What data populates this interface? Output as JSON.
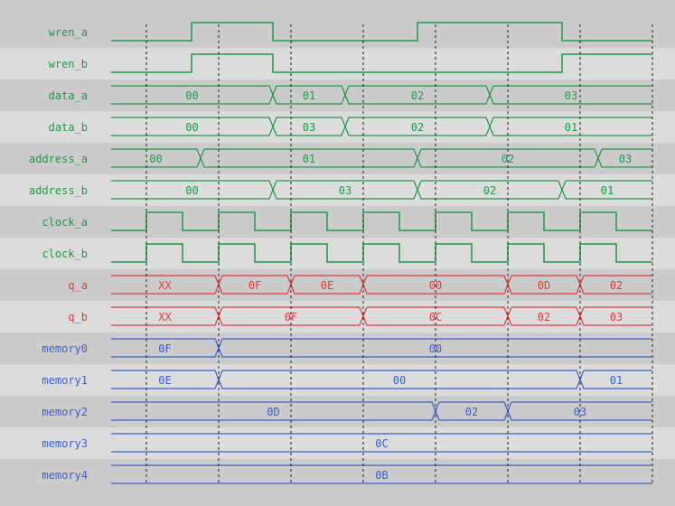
{
  "colors": {
    "control": "#1f9a45",
    "output": "#e03c3c",
    "memory": "#3a5fd0",
    "row_dark": "#cbcbcb",
    "row_light": "#dcdcdc",
    "grid": "#222222"
  },
  "time_range": [
    0,
    15
  ],
  "grid_times": [
    1,
    3,
    5,
    7,
    9,
    11,
    13,
    15
  ],
  "signals": [
    {
      "name": "wren_a",
      "kind": "bit",
      "group": "control",
      "initial": 0,
      "toggles": [
        2.25,
        4.5,
        8.5,
        12.5
      ]
    },
    {
      "name": "wren_b",
      "kind": "bit",
      "group": "control",
      "initial": 0,
      "toggles": [
        2.25,
        4.5,
        12.5
      ]
    },
    {
      "name": "data_a",
      "kind": "bus",
      "group": "control",
      "segments": [
        {
          "value": "00",
          "end": 4.5
        },
        {
          "value": "01",
          "end": 6.5
        },
        {
          "value": "02",
          "end": 10.5
        },
        {
          "value": "03",
          "end": 15
        }
      ]
    },
    {
      "name": "data_b",
      "kind": "bus",
      "group": "control",
      "segments": [
        {
          "value": "00",
          "end": 4.5
        },
        {
          "value": "03",
          "end": 6.5
        },
        {
          "value": "02",
          "end": 10.5
        },
        {
          "value": "01",
          "end": 15
        }
      ]
    },
    {
      "name": "address_a",
      "kind": "bus",
      "group": "control",
      "segments": [
        {
          "value": "00",
          "end": 2.5
        },
        {
          "value": "01",
          "end": 8.5
        },
        {
          "value": "02",
          "end": 13.5
        },
        {
          "value": "03",
          "end": 15
        }
      ]
    },
    {
      "name": "address_b",
      "kind": "bus",
      "group": "control",
      "segments": [
        {
          "value": "00",
          "end": 4.5
        },
        {
          "value": "03",
          "end": 8.5
        },
        {
          "value": "02",
          "end": 12.5
        },
        {
          "value": "01",
          "end": 15
        }
      ]
    },
    {
      "name": "clock_a",
      "kind": "bit",
      "group": "control",
      "initial": 0,
      "toggles": [
        1,
        2,
        3,
        4,
        5,
        6,
        7,
        8,
        9,
        10,
        11,
        12,
        13,
        14
      ]
    },
    {
      "name": "clock_b",
      "kind": "bit",
      "group": "control",
      "initial": 0,
      "toggles": [
        1,
        2,
        3,
        4,
        5,
        6,
        7,
        8,
        9,
        10,
        11,
        12,
        13,
        14
      ]
    },
    {
      "name": "q_a",
      "kind": "bus",
      "group": "output",
      "segments": [
        {
          "value": "XX",
          "end": 3
        },
        {
          "value": "0F",
          "end": 5
        },
        {
          "value": "0E",
          "end": 7
        },
        {
          "value": "00",
          "end": 11
        },
        {
          "value": "0D",
          "end": 13
        },
        {
          "value": "02",
          "end": 15
        }
      ]
    },
    {
      "name": "q_b",
      "kind": "bus",
      "group": "output",
      "segments": [
        {
          "value": "XX",
          "end": 3
        },
        {
          "value": "0F",
          "end": 7
        },
        {
          "value": "0C",
          "end": 11
        },
        {
          "value": "02",
          "end": 13
        },
        {
          "value": "03",
          "end": 15
        }
      ]
    },
    {
      "name": "memory0",
      "kind": "bus",
      "group": "memory",
      "segments": [
        {
          "value": "0F",
          "end": 3
        },
        {
          "value": "00",
          "end": 15
        }
      ]
    },
    {
      "name": "memory1",
      "kind": "bus",
      "group": "memory",
      "segments": [
        {
          "value": "0E",
          "end": 3
        },
        {
          "value": "00",
          "end": 13
        },
        {
          "value": "01",
          "end": 15
        }
      ]
    },
    {
      "name": "memory2",
      "kind": "bus",
      "group": "memory",
      "segments": [
        {
          "value": "0D",
          "end": 9
        },
        {
          "value": "02",
          "end": 11
        },
        {
          "value": "03",
          "end": 15
        }
      ]
    },
    {
      "name": "memory3",
      "kind": "bus",
      "group": "memory",
      "segments": [
        {
          "value": "0C",
          "end": 15
        }
      ]
    },
    {
      "name": "memory4",
      "kind": "bus",
      "group": "memory",
      "segments": [
        {
          "value": "0B",
          "end": 15
        }
      ]
    }
  ]
}
